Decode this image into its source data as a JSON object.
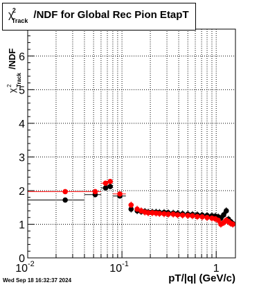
{
  "title": {
    "chi_symbol": "χ",
    "superscript": "2",
    "subscript": "Track",
    "text": "/NDF for Global Rec Pion EtapT"
  },
  "timestamp": "Wed Sep 18 16:32:37 2024",
  "colors": {
    "series_black": "#000000",
    "series_red": "#ff0000",
    "grid": "#000000",
    "frame": "#000000"
  },
  "chart_data": {
    "type": "scatter",
    "x_scale": "log",
    "xlim": [
      0.01,
      1.6
    ],
    "ylim": [
      0,
      6.8
    ],
    "grid": true,
    "xlabel": "pT/|q| (GeV/c)",
    "ylabel": "/NDF",
    "ylabel_prefix": {
      "symbol": "χ",
      "superscript": "2",
      "subscript": "Track"
    },
    "y_ticks": [
      "0",
      "1",
      "2",
      "3",
      "4",
      "5",
      "6"
    ],
    "x_ticks": [
      {
        "value": 0.01,
        "label": "10",
        "sup": "-2"
      },
      {
        "value": 0.1,
        "label": "10",
        "sup": "-1"
      },
      {
        "value": 1,
        "label": "1",
        "sup": ""
      }
    ],
    "series": [
      {
        "color": "black",
        "points": [
          [
            0.025,
            1.72
          ],
          [
            0.052,
            1.88
          ],
          [
            0.067,
            2.08
          ],
          [
            0.075,
            2.12
          ],
          [
            0.095,
            1.84
          ],
          [
            0.125,
            1.45
          ],
          [
            0.145,
            1.4
          ],
          [
            0.16,
            1.38
          ],
          [
            0.175,
            1.38
          ],
          [
            0.19,
            1.36
          ],
          [
            0.21,
            1.36
          ],
          [
            0.23,
            1.36
          ],
          [
            0.25,
            1.35
          ],
          [
            0.28,
            1.35
          ],
          [
            0.31,
            1.34
          ],
          [
            0.35,
            1.33
          ],
          [
            0.39,
            1.32
          ],
          [
            0.44,
            1.31
          ],
          [
            0.5,
            1.3
          ],
          [
            0.56,
            1.29
          ],
          [
            0.63,
            1.28
          ],
          [
            0.71,
            1.27
          ],
          [
            0.8,
            1.26
          ],
          [
            0.9,
            1.25
          ],
          [
            0.98,
            1.24
          ],
          [
            1.05,
            1.22
          ],
          [
            1.12,
            1.18
          ],
          [
            1.2,
            1.28
          ],
          [
            1.28,
            1.4
          ],
          [
            1.35,
            1.15
          ],
          [
            1.42,
            1.08
          ],
          [
            1.5,
            1.02
          ]
        ]
      },
      {
        "color": "red",
        "points": [
          [
            0.025,
            1.97
          ],
          [
            0.052,
            1.97
          ],
          [
            0.067,
            2.22
          ],
          [
            0.075,
            2.27
          ],
          [
            0.095,
            1.9
          ],
          [
            0.125,
            1.57
          ],
          [
            0.145,
            1.45
          ],
          [
            0.16,
            1.4
          ],
          [
            0.175,
            1.36
          ],
          [
            0.19,
            1.34
          ],
          [
            0.21,
            1.34
          ],
          [
            0.23,
            1.33
          ],
          [
            0.25,
            1.32
          ],
          [
            0.28,
            1.31
          ],
          [
            0.31,
            1.3
          ],
          [
            0.35,
            1.3
          ],
          [
            0.39,
            1.28
          ],
          [
            0.44,
            1.27
          ],
          [
            0.5,
            1.26
          ],
          [
            0.56,
            1.25
          ],
          [
            0.63,
            1.23
          ],
          [
            0.71,
            1.22
          ],
          [
            0.8,
            1.2
          ],
          [
            0.9,
            1.18
          ],
          [
            0.98,
            1.16
          ],
          [
            1.05,
            1.12
          ],
          [
            1.12,
            1.0
          ],
          [
            1.2,
            1.05
          ],
          [
            1.28,
            1.12
          ],
          [
            1.35,
            1.08
          ],
          [
            1.42,
            1.03
          ],
          [
            1.5,
            1.0
          ]
        ]
      }
    ]
  }
}
